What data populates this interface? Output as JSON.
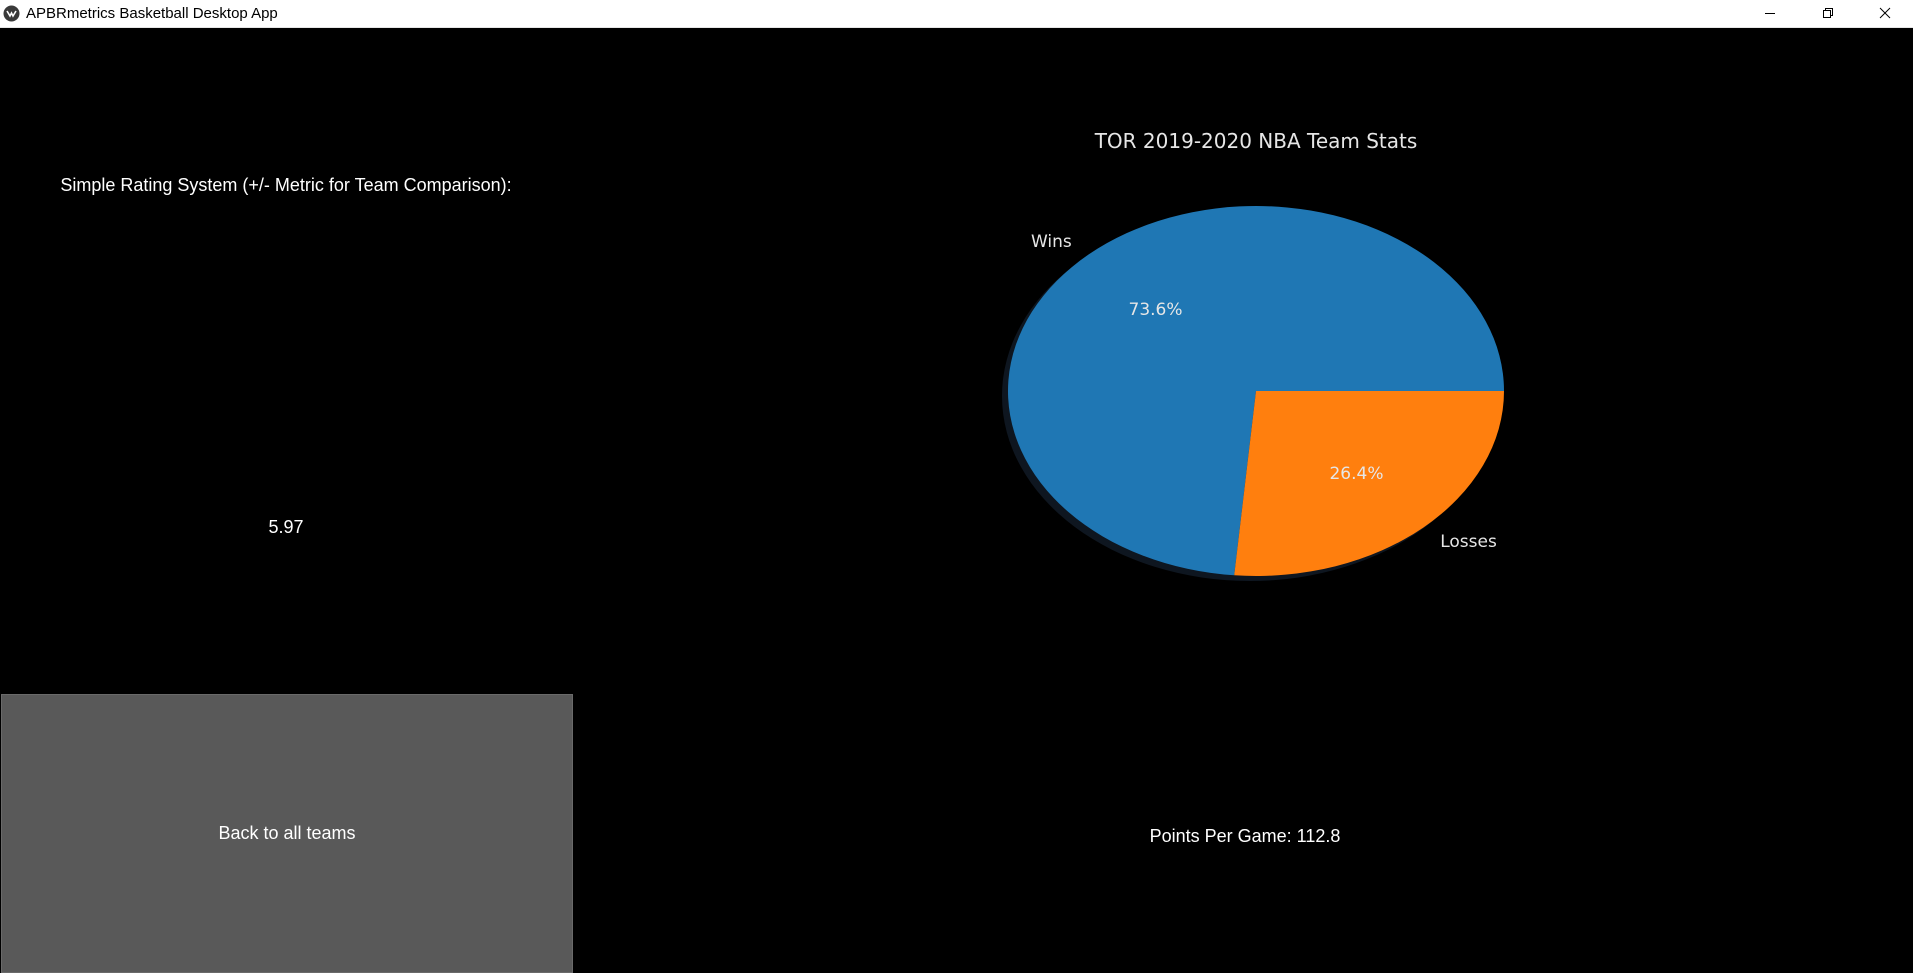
{
  "window": {
    "title": "APBRmetrics Basketball Desktop App",
    "controls": [
      "minimize",
      "restore",
      "close"
    ]
  },
  "metrics": {
    "srs_label": "Simple Rating System (+/- Metric for Team Comparison):",
    "srs_value": "5.97",
    "ppg_text": "Points Per Game: 112.8"
  },
  "actions": {
    "back_label": "Back to all teams"
  },
  "colors": {
    "background": "#000000",
    "button": "#595959",
    "wins": "#1f77b4",
    "losses": "#ff7f0e",
    "chart_text": "#e6e6e6"
  },
  "chart_data": {
    "type": "pie",
    "title": "TOR 2019-2020 NBA Team Stats",
    "labels": [
      "Wins",
      "Losses"
    ],
    "values": [
      73.6,
      26.4
    ],
    "value_labels": [
      "73.6%",
      "26.4%"
    ],
    "colors": [
      "#1f77b4",
      "#ff7f0e"
    ],
    "shadow": true
  }
}
